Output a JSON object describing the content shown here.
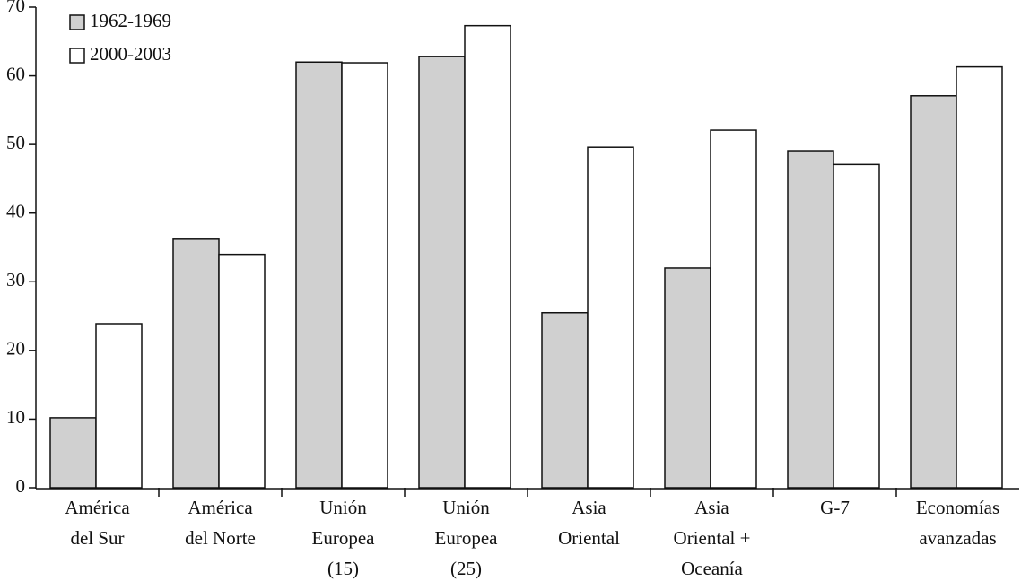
{
  "chart_data": {
    "type": "bar",
    "categories": [
      [
        "América",
        "del Sur"
      ],
      [
        "América",
        "del Norte"
      ],
      [
        "Unión",
        "Europea",
        "(15)"
      ],
      [
        "Unión",
        "Europea",
        "(25)"
      ],
      [
        "Asia",
        "Oriental"
      ],
      [
        "Asia",
        "Oriental +",
        "Oceanía"
      ],
      [
        "G-7"
      ],
      [
        "Economías",
        "avanzadas"
      ]
    ],
    "series": [
      {
        "name": "1962-1969",
        "color": "#d0d0d0",
        "values": [
          10.2,
          36.2,
          62.0,
          62.8,
          25.5,
          32.0,
          49.1,
          57.1
        ]
      },
      {
        "name": "2000-2003",
        "color": "#ffffff",
        "values": [
          23.9,
          34.0,
          61.9,
          67.3,
          49.6,
          52.1,
          47.1,
          61.3
        ]
      }
    ],
    "ylim": [
      0,
      70
    ],
    "yticks": [
      0,
      10,
      20,
      30,
      40,
      50,
      60,
      70
    ],
    "grid": false,
    "legend": "top-left"
  }
}
